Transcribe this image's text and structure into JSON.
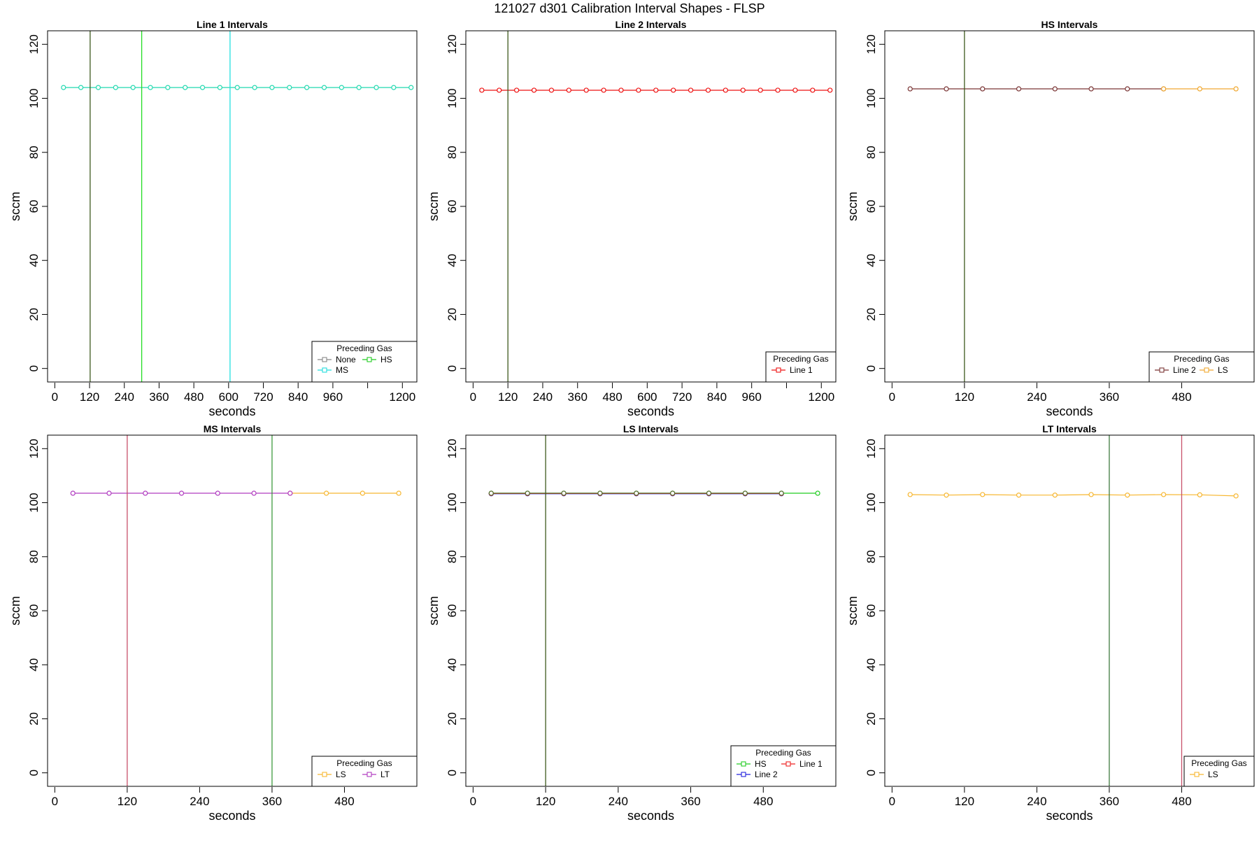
{
  "figure": {
    "title": "121027   d301   Calibration Interval Shapes - FLSP"
  },
  "chart_data": [
    {
      "type": "line",
      "title": "Line 1 Intervals",
      "xlabel": "seconds",
      "ylabel": "sccm",
      "xlim": [
        -25,
        1250
      ],
      "ylim": [
        -5,
        125
      ],
      "xticks": [
        0,
        120,
        240,
        360,
        480,
        600,
        720,
        840,
        960,
        1080,
        1200
      ],
      "xtick_labels": [
        "0",
        "120",
        "240",
        "360",
        "480",
        "600",
        "720",
        "840",
        "960",
        "",
        "1200"
      ],
      "yticks": [
        0,
        20,
        40,
        60,
        80,
        100,
        120
      ],
      "vlines": [
        {
          "x": 122,
          "color": "#3d5a1e"
        },
        {
          "x": 300,
          "color": "#22dd22"
        },
        {
          "x": 605,
          "color": "#22e0e0"
        }
      ],
      "legend": {
        "title": "Preceding Gas",
        "position": "bottom-right",
        "columns": 2
      },
      "series": [
        {
          "name": "None",
          "color": "#888888",
          "values": []
        },
        {
          "name": "MS",
          "color": "#22dddd",
          "values": []
        },
        {
          "name": "HS",
          "color": "#22cc22",
          "values": []
        },
        {
          "name": "",
          "color": "#22d9b0",
          "x": [
            30,
            90,
            150,
            210,
            270,
            330,
            390,
            450,
            510,
            570,
            630,
            690,
            750,
            810,
            870,
            930,
            990,
            1050,
            1110,
            1170,
            1230
          ],
          "y": [
            104,
            104,
            104,
            104,
            104,
            104,
            104,
            104,
            104,
            104,
            104,
            104,
            104,
            104,
            104,
            104,
            104,
            104,
            104,
            104,
            104
          ]
        }
      ]
    },
    {
      "type": "line",
      "title": "Line 2 Intervals",
      "xlabel": "seconds",
      "ylabel": "sccm",
      "xlim": [
        -25,
        1250
      ],
      "ylim": [
        -5,
        125
      ],
      "xticks": [
        0,
        120,
        240,
        360,
        480,
        600,
        720,
        840,
        960,
        1080,
        1200
      ],
      "xtick_labels": [
        "0",
        "120",
        "240",
        "360",
        "480",
        "600",
        "720",
        "840",
        "960",
        "",
        "1200"
      ],
      "yticks": [
        0,
        20,
        40,
        60,
        80,
        100,
        120
      ],
      "vlines": [
        {
          "x": 120,
          "color": "#3d5a1e"
        }
      ],
      "legend": {
        "title": "Preceding Gas",
        "position": "bottom-right",
        "columns": 1
      },
      "series": [
        {
          "name": "Line 1",
          "color": "#ee1111",
          "x": [
            30,
            90,
            150,
            210,
            270,
            330,
            390,
            450,
            510,
            570,
            630,
            690,
            750,
            810,
            870,
            930,
            990,
            1050,
            1110,
            1170,
            1230
          ],
          "y": [
            103,
            103,
            103,
            103,
            103,
            103,
            103,
            103,
            103,
            103,
            103,
            103,
            103,
            103,
            103,
            103,
            103,
            103,
            103,
            103,
            103
          ]
        }
      ]
    },
    {
      "type": "line",
      "title": "HS Intervals",
      "xlabel": "seconds",
      "ylabel": "sccm",
      "xlim": [
        -12,
        600
      ],
      "ylim": [
        -5,
        125
      ],
      "xticks": [
        0,
        120,
        240,
        360,
        480
      ],
      "xtick_labels": [
        "0",
        "120",
        "240",
        "360",
        "480"
      ],
      "yticks": [
        0,
        20,
        40,
        60,
        80,
        100,
        120
      ],
      "vlines": [
        {
          "x": 120,
          "color": "#3d5a1e"
        }
      ],
      "legend": {
        "title": "Preceding Gas",
        "position": "bottom-right",
        "columns": 2
      },
      "series": [
        {
          "name": "Line 2",
          "color": "#7a3535",
          "x": [
            30,
            90,
            150,
            210,
            270,
            330,
            390,
            450
          ],
          "y": [
            103.5,
            103.5,
            103.5,
            103.5,
            103.5,
            103.5,
            103.5,
            103.5
          ]
        },
        {
          "name": "LS",
          "color": "#f0a830",
          "x": [
            450,
            510,
            570
          ],
          "y": [
            103.5,
            103.5,
            103.5
          ]
        }
      ]
    },
    {
      "type": "line",
      "title": "MS Intervals",
      "xlabel": "seconds",
      "ylabel": "sccm",
      "xlim": [
        -12,
        600
      ],
      "ylim": [
        -5,
        125
      ],
      "xticks": [
        0,
        120,
        240,
        360,
        480
      ],
      "xtick_labels": [
        "0",
        "120",
        "240",
        "360",
        "480"
      ],
      "yticks": [
        0,
        20,
        40,
        60,
        80,
        100,
        120
      ],
      "vlines": [
        {
          "x": 120,
          "color": "#c8506a"
        },
        {
          "x": 360,
          "color": "#3f9a3f"
        }
      ],
      "legend": {
        "title": "Preceding Gas",
        "position": "bottom-right",
        "columns": 2
      },
      "series": [
        {
          "name": "LS",
          "color": "#f7b731",
          "x": [
            390,
            450,
            510,
            570
          ],
          "y": [
            103.5,
            103.5,
            103.5,
            103.5
          ]
        },
        {
          "name": "LT",
          "color": "#b03cc0",
          "x": [
            30,
            90,
            150,
            210,
            270,
            330,
            390
          ],
          "y": [
            103.5,
            103.5,
            103.5,
            103.5,
            103.5,
            103.5,
            103.5
          ]
        }
      ]
    },
    {
      "type": "line",
      "title": "LS Intervals",
      "xlabel": "seconds",
      "ylabel": "sccm",
      "xlim": [
        -12,
        600
      ],
      "ylim": [
        -5,
        125
      ],
      "xticks": [
        0,
        120,
        240,
        360,
        480
      ],
      "xtick_labels": [
        "0",
        "120",
        "240",
        "360",
        "480"
      ],
      "yticks": [
        0,
        20,
        40,
        60,
        80,
        100,
        120
      ],
      "vlines": [
        {
          "x": 120,
          "color": "#3d5a1e"
        }
      ],
      "legend": {
        "title": "Preceding Gas",
        "position": "bottom-right",
        "columns": 2
      },
      "series": [
        {
          "name": "HS",
          "color": "#22cc22",
          "x": [
            30,
            90,
            150,
            210,
            270,
            330,
            390,
            450,
            510,
            570
          ],
          "y": [
            103.5,
            103.5,
            103.5,
            103.5,
            103.5,
            103.5,
            103.5,
            103.5,
            103.5,
            103.5
          ]
        },
        {
          "name": "Line 2",
          "color": "#2222dd",
          "x": [
            30,
            90,
            150,
            210,
            270,
            330,
            390,
            450,
            510
          ],
          "y": [
            103.3,
            103.3,
            103.3,
            103.3,
            103.3,
            103.3,
            103.3,
            103.3,
            103.3
          ]
        },
        {
          "name": "Line 1",
          "color": "#ee2222",
          "x": [
            30,
            90,
            150,
            210,
            270,
            330,
            390,
            450,
            510
          ],
          "y": [
            103.4,
            103.4,
            103.4,
            103.4,
            103.4,
            103.4,
            103.4,
            103.4,
            103.4
          ]
        },
        {
          "name": "",
          "color": "#556b2f",
          "x": [
            30,
            90,
            150,
            210,
            270,
            330,
            390,
            450,
            510
          ],
          "y": [
            103.5,
            103.5,
            103.5,
            103.5,
            103.5,
            103.5,
            103.5,
            103.5,
            103.5
          ]
        }
      ]
    },
    {
      "type": "line",
      "title": "LT Intervals",
      "xlabel": "seconds",
      "ylabel": "sccm",
      "xlim": [
        -12,
        600
      ],
      "ylim": [
        -5,
        125
      ],
      "xticks": [
        0,
        120,
        240,
        360,
        480
      ],
      "xtick_labels": [
        "0",
        "120",
        "240",
        "360",
        "480"
      ],
      "yticks": [
        0,
        20,
        40,
        60,
        80,
        100,
        120
      ],
      "vlines": [
        {
          "x": 360,
          "color": "#3f7a3f"
        },
        {
          "x": 480,
          "color": "#c8506a"
        }
      ],
      "legend": {
        "title": "Preceding Gas",
        "position": "bottom-right",
        "columns": 1
      },
      "series": [
        {
          "name": "LS",
          "color": "#f7b731",
          "x": [
            30,
            90,
            150,
            210,
            270,
            330,
            390,
            450,
            510,
            570
          ],
          "y": [
            103,
            102.8,
            103,
            102.8,
            102.8,
            103,
            102.8,
            103,
            102.9,
            102.5
          ]
        }
      ]
    }
  ]
}
